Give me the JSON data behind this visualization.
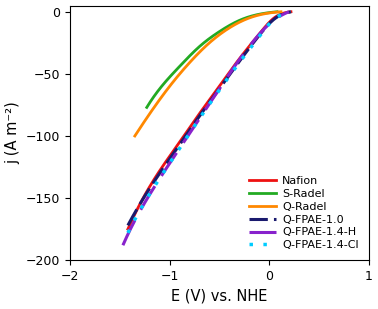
{
  "xlabel": "E (V) vs. NHE",
  "ylabel": "j (A m⁻²)",
  "xlim": [
    -2,
    1
  ],
  "ylim": [
    -200,
    5
  ],
  "xticks": [
    -2,
    -1,
    0,
    1
  ],
  "yticks": [
    -200,
    -150,
    -100,
    -50,
    0
  ],
  "series": [
    {
      "name": "Nafion",
      "color": "#ee1111",
      "linestyle": "solid",
      "linewidth": 2.0,
      "dash_pattern": null,
      "points": [
        [
          -1.42,
          -175
        ],
        [
          -1.3,
          -155
        ],
        [
          -1.1,
          -128
        ],
        [
          -0.9,
          -105
        ],
        [
          -0.7,
          -82
        ],
        [
          -0.5,
          -60
        ],
        [
          -0.3,
          -38
        ],
        [
          -0.1,
          -18
        ],
        [
          0.05,
          -5
        ],
        [
          0.15,
          -1
        ],
        [
          0.22,
          0
        ]
      ]
    },
    {
      "name": "S-Radel",
      "color": "#22aa22",
      "linestyle": "solid",
      "linewidth": 2.0,
      "dash_pattern": null,
      "points": [
        [
          -1.23,
          -77
        ],
        [
          -1.1,
          -62
        ],
        [
          -0.9,
          -44
        ],
        [
          -0.7,
          -28
        ],
        [
          -0.5,
          -16
        ],
        [
          -0.3,
          -7
        ],
        [
          -0.1,
          -2
        ],
        [
          0.08,
          0
        ]
      ]
    },
    {
      "name": "Q-Radel",
      "color": "#ff8800",
      "linestyle": "solid",
      "linewidth": 2.0,
      "dash_pattern": null,
      "points": [
        [
          -1.35,
          -100
        ],
        [
          -1.2,
          -82
        ],
        [
          -1.0,
          -60
        ],
        [
          -0.8,
          -41
        ],
        [
          -0.6,
          -25
        ],
        [
          -0.4,
          -13
        ],
        [
          -0.2,
          -5
        ],
        [
          0.0,
          -1
        ],
        [
          0.12,
          0
        ]
      ]
    },
    {
      "name": "Q-FPAE-1.0",
      "color": "#1a1a6e",
      "linestyle": "dashed",
      "linewidth": 2.2,
      "dash_pattern": [
        6,
        2
      ],
      "points": [
        [
          -1.42,
          -172
        ],
        [
          -1.3,
          -155
        ],
        [
          -1.1,
          -130
        ],
        [
          -0.9,
          -107
        ],
        [
          -0.7,
          -84
        ],
        [
          -0.5,
          -62
        ],
        [
          -0.3,
          -40
        ],
        [
          -0.1,
          -19
        ],
        [
          0.05,
          -6
        ],
        [
          0.15,
          -1.5
        ],
        [
          0.22,
          0
        ]
      ]
    },
    {
      "name": "Q-FPAE-1.4-H",
      "color": "#8822cc",
      "linestyle": "dashed",
      "linewidth": 2.2,
      "dash_pattern": [
        9,
        4
      ],
      "points": [
        [
          -1.47,
          -188
        ],
        [
          -1.35,
          -168
        ],
        [
          -1.2,
          -147
        ],
        [
          -1.0,
          -122
        ],
        [
          -0.8,
          -98
        ],
        [
          -0.6,
          -74
        ],
        [
          -0.4,
          -50
        ],
        [
          -0.2,
          -28
        ],
        [
          0.0,
          -10
        ],
        [
          0.1,
          -4
        ],
        [
          0.2,
          0
        ]
      ]
    },
    {
      "name": "Q-FPAE-1.4-Cl",
      "color": "#00ccff",
      "linestyle": "dotted",
      "linewidth": 2.5,
      "dash_pattern": [
        1,
        3
      ],
      "points": [
        [
          -1.42,
          -178
        ],
        [
          -1.3,
          -160
        ],
        [
          -1.1,
          -134
        ],
        [
          -0.9,
          -110
        ],
        [
          -0.7,
          -86
        ],
        [
          -0.5,
          -63
        ],
        [
          -0.3,
          -41
        ],
        [
          -0.1,
          -20
        ],
        [
          0.05,
          -6
        ],
        [
          0.15,
          -1.5
        ],
        [
          0.22,
          0
        ]
      ]
    }
  ],
  "legend": {
    "loc": "lower right",
    "fontsize": 8,
    "handlelength": 2.5,
    "handletextpad": 0.5,
    "labelspacing": 0.25,
    "borderpad": 0.4,
    "frameon": true,
    "edgecolor": "none",
    "bbox_to_anchor": null
  }
}
